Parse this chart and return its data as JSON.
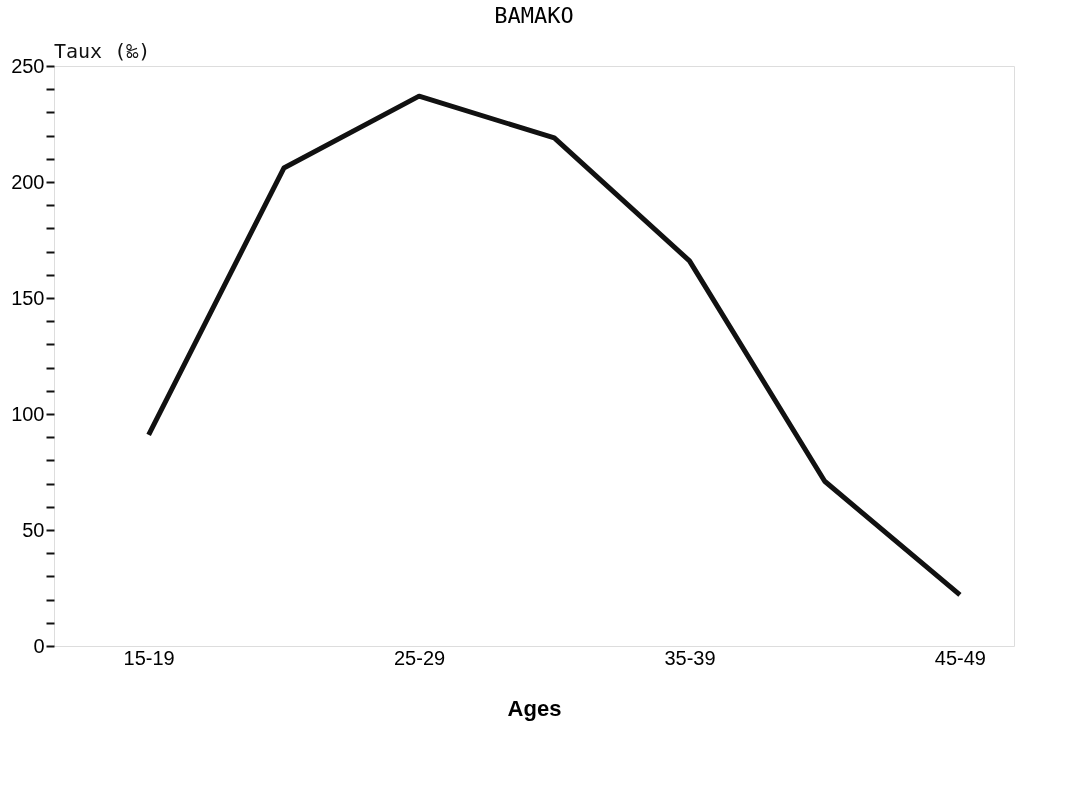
{
  "chart_data": {
    "type": "line",
    "title": "BAMAKO",
    "xlabel": "Ages",
    "ylabel": "Taux (‰)",
    "categories": [
      "15-19",
      null,
      "25-29",
      null,
      "35-39",
      null,
      "45-49"
    ],
    "series": [
      {
        "color": "#111111",
        "values": [
          91,
          206,
          237,
          219,
          166,
          71,
          22
        ]
      }
    ],
    "ylim": [
      0,
      250
    ],
    "yticks": [
      0,
      {
        "value": 10,
        "label": null
      },
      {
        "value": 20,
        "label": null
      },
      {
        "value": 30,
        "label": null
      },
      {
        "value": 40,
        "label": null
      },
      50,
      {
        "value": 60,
        "label": null
      },
      {
        "value": 70,
        "label": null
      },
      {
        "value": 80,
        "label": null
      },
      {
        "value": 90,
        "label": null
      },
      100,
      {
        "value": 110,
        "label": null
      },
      {
        "value": 120,
        "label": null
      },
      {
        "value": 130,
        "label": null
      },
      {
        "value": 140,
        "label": null
      },
      150,
      {
        "value": 160,
        "label": null
      },
      {
        "value": 170,
        "label": null
      },
      {
        "value": 180,
        "label": null
      },
      {
        "value": 190,
        "label": null
      },
      200,
      {
        "value": 210,
        "label": null
      },
      {
        "value": 220,
        "label": null
      },
      {
        "value": 230,
        "label": null
      },
      {
        "value": 240,
        "label": null
      },
      250
    ],
    "grid": false,
    "marker": "none",
    "line_style": "solid"
  }
}
